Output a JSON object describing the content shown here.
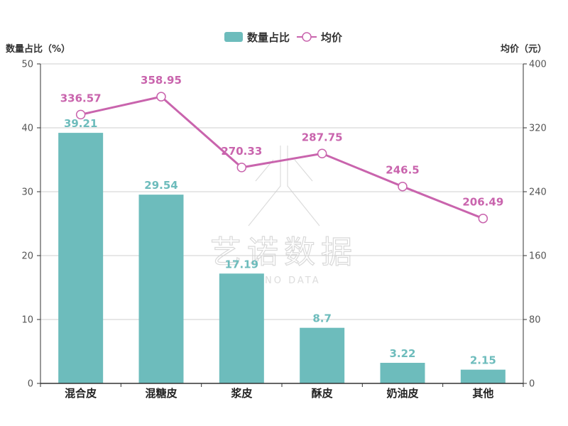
{
  "chart_data": {
    "type": "bar",
    "categories": [
      "混合皮",
      "混糖皮",
      "浆皮",
      "酥皮",
      "奶油皮",
      "其他"
    ],
    "series": [
      {
        "name": "数量占比",
        "type": "bar",
        "axis": "left",
        "color": "#6dbcbc",
        "values": [
          39.21,
          29.54,
          17.19,
          8.7,
          3.22,
          2.15
        ],
        "labels": [
          "39.21",
          "29.54",
          "17.19",
          "8.7",
          "3.22",
          "2.15"
        ]
      },
      {
        "name": "均价",
        "type": "line",
        "axis": "right",
        "color": "#c964ad",
        "values": [
          336.57,
          358.95,
          270.33,
          287.75,
          246.5,
          206.49
        ],
        "labels": [
          "336.57",
          "358.95",
          "270.33",
          "287.75",
          "246.5",
          "206.49"
        ]
      }
    ],
    "y_left": {
      "label": "数量占比（%）",
      "lim": [
        0,
        50
      ],
      "ticks": [
        "0",
        "10",
        "20",
        "30",
        "40",
        "50"
      ]
    },
    "y_right": {
      "label": "均价（元）",
      "lim": [
        0,
        400
      ],
      "ticks": [
        "0",
        "80",
        "160",
        "240",
        "320",
        "400"
      ]
    },
    "grid": true,
    "legend_position": "top-center",
    "watermark": {
      "main": "艺诺数据",
      "sub": "ZHNO DATA"
    }
  }
}
